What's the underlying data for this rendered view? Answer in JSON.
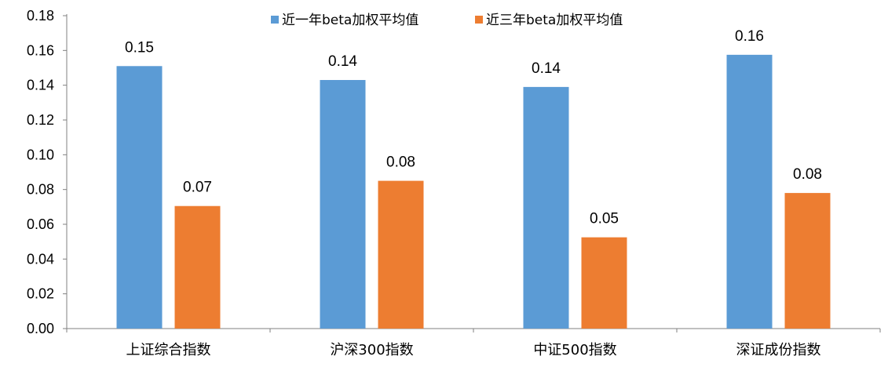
{
  "chart_data": {
    "type": "bar",
    "categories": [
      "上证综合指数",
      "沪深300指数",
      "中证500指数",
      "深证成份指数"
    ],
    "series": [
      {
        "name": "近一年beta加权平均值",
        "values": [
          0.151,
          0.143,
          0.139,
          0.1575
        ],
        "labels": [
          "0.15",
          "0.14",
          "0.14",
          "0.16"
        ],
        "color": "#5B9BD5"
      },
      {
        "name": "近三年beta加权平均值",
        "values": [
          0.0705,
          0.085,
          0.0525,
          0.078
        ],
        "labels": [
          "0.07",
          "0.08",
          "0.05",
          "0.08"
        ],
        "color": "#ED7D31"
      }
    ],
    "ylim": [
      0,
      0.18
    ],
    "yticks": [
      "0.00",
      "0.02",
      "0.04",
      "0.06",
      "0.08",
      "0.10",
      "0.12",
      "0.14",
      "0.16",
      "0.18"
    ],
    "legend_position": "top-center",
    "grid": false,
    "title": "",
    "xlabel": "",
    "ylabel": ""
  }
}
